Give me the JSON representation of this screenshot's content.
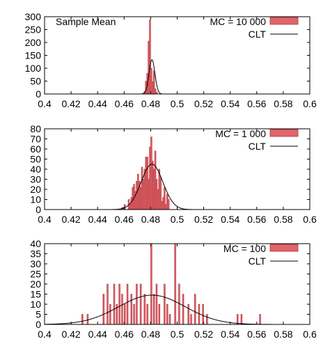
{
  "chart_data": [
    {
      "type": "bar",
      "title": "Sample Mean",
      "x_range": [
        0.4,
        0.6
      ],
      "x_ticks": [
        "0.4",
        "0.42",
        "0.44",
        "0.46",
        "0.48",
        "0.5",
        "0.52",
        "0.54",
        "0.56",
        "0.58",
        "0.6"
      ],
      "ylim": [
        0,
        300
      ],
      "y_ticks": [
        "0",
        "50",
        "100",
        "150",
        "200",
        "250",
        "300"
      ],
      "bin_width": 0.001,
      "legend_placement": "top-right",
      "series": [
        {
          "name": "MC = 10 000",
          "kind": "histogram",
          "color": "#e0666b",
          "bin_centers": [
            0.4745,
            0.4755,
            0.4765,
            0.4775,
            0.4785,
            0.4795,
            0.4805,
            0.4815,
            0.4825,
            0.4835,
            0.4845
          ],
          "counts": [
            3,
            10,
            50,
            80,
            205,
            288,
            100,
            48,
            90,
            20,
            8
          ]
        },
        {
          "name": "CLT",
          "kind": "curve",
          "color": "#000000",
          "mean": 0.481,
          "peak": 133,
          "sd": 0.0022
        }
      ]
    },
    {
      "type": "bar",
      "title": "",
      "x_range": [
        0.4,
        0.6
      ],
      "x_ticks": [
        "0.4",
        "0.42",
        "0.44",
        "0.46",
        "0.48",
        "0.5",
        "0.52",
        "0.54",
        "0.56",
        "0.58",
        "0.6"
      ],
      "ylim": [
        0,
        80
      ],
      "y_ticks": [
        "0",
        "10",
        "20",
        "30",
        "40",
        "50",
        "60",
        "70",
        "80"
      ],
      "bin_width": 0.001,
      "legend_placement": "top-right",
      "series": [
        {
          "name": "MC = 1 000",
          "kind": "histogram",
          "color": "#e0666b",
          "bin_centers": [
            0.4585,
            0.4595,
            0.4605,
            0.4635,
            0.4645,
            0.4655,
            0.4665,
            0.4675,
            0.4685,
            0.4695,
            0.4705,
            0.4715,
            0.4725,
            0.4735,
            0.4745,
            0.4755,
            0.4765,
            0.4775,
            0.4785,
            0.4795,
            0.4805,
            0.4815,
            0.4825,
            0.4835,
            0.4845,
            0.4855,
            0.4865,
            0.4875,
            0.4885,
            0.4895,
            0.4905,
            0.4915,
            0.4925,
            0.4935
          ],
          "counts": [
            2,
            2,
            5,
            10,
            5,
            12,
            22,
            25,
            18,
            28,
            35,
            28,
            22,
            42,
            30,
            40,
            52,
            52,
            30,
            62,
            72,
            48,
            40,
            58,
            30,
            20,
            40,
            32,
            8,
            12,
            22,
            5,
            15,
            10
          ]
        },
        {
          "name": "CLT",
          "kind": "curve",
          "color": "#000000",
          "mean": 0.481,
          "peak": 45,
          "sd": 0.0082
        }
      ]
    },
    {
      "type": "bar",
      "title": "",
      "x_range": [
        0.4,
        0.6
      ],
      "x_ticks": [
        "0.4",
        "0.42",
        "0.44",
        "0.46",
        "0.48",
        "0.5",
        "0.52",
        "0.54",
        "0.56",
        "0.58",
        "0.6"
      ],
      "ylim": [
        0,
        40
      ],
      "y_ticks": [
        "0",
        "5",
        "10",
        "15",
        "20",
        "25",
        "30",
        "35",
        "40"
      ],
      "bin_width": 0.001,
      "legend_placement": "top-right",
      "series": [
        {
          "name": "MC = 100",
          "kind": "histogram",
          "color": "#e0666b",
          "bin_centers": [
            0.4285,
            0.4325,
            0.4445,
            0.4475,
            0.4495,
            0.4525,
            0.4545,
            0.4565,
            0.4585,
            0.4605,
            0.4625,
            0.4655,
            0.4675,
            0.4695,
            0.4725,
            0.4755,
            0.4775,
            0.4805,
            0.4825,
            0.4845,
            0.4865,
            0.4905,
            0.4925,
            0.4945,
            0.4985,
            0.5015,
            0.5045,
            0.5085,
            0.5105,
            0.5135,
            0.5165,
            0.5195,
            0.5225,
            0.5455,
            0.5485,
            0.5625
          ],
          "counts": [
            5,
            5,
            15,
            20,
            10,
            20,
            10,
            20,
            15,
            10,
            20,
            15,
            10,
            20,
            20,
            15,
            10,
            40,
            15,
            20,
            10,
            20,
            10,
            5,
            40,
            20,
            15,
            10,
            5,
            15,
            10,
            10,
            5,
            5,
            5,
            5
          ]
        },
        {
          "name": "CLT",
          "kind": "curve",
          "color": "#000000",
          "mean": 0.481,
          "peak": 14.5,
          "sd": 0.025
        }
      ]
    }
  ]
}
